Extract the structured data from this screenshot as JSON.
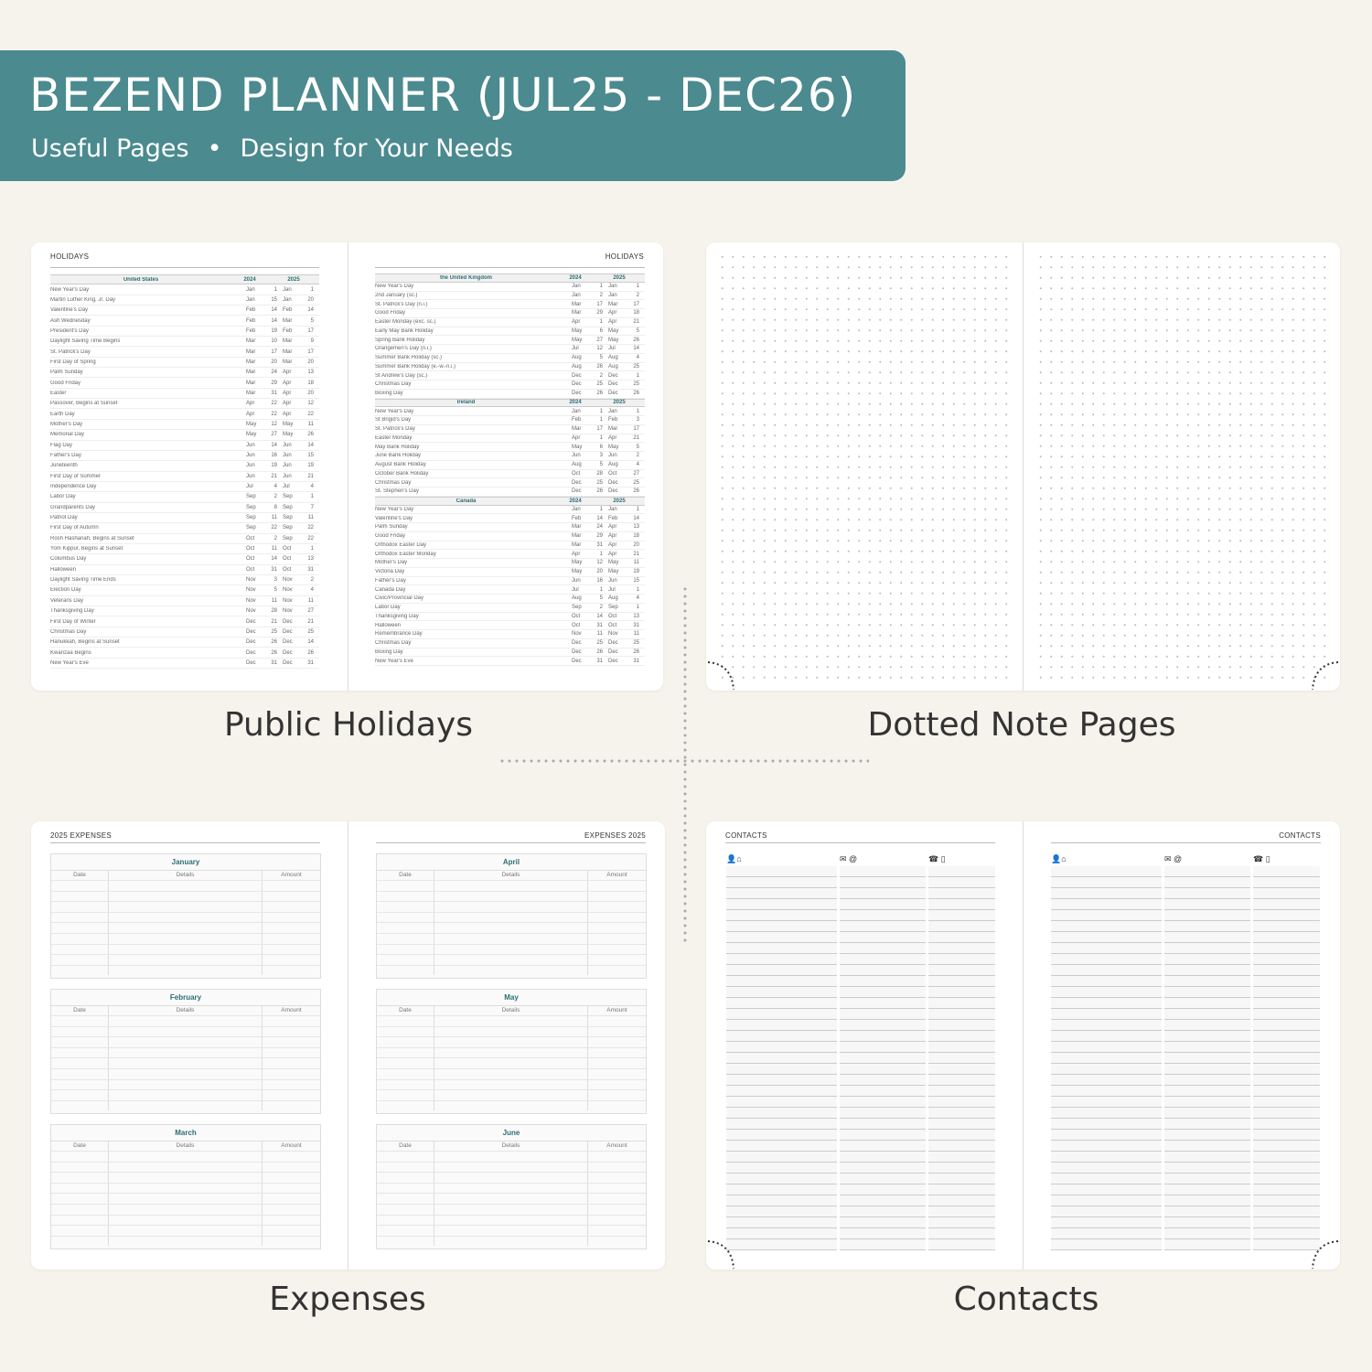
{
  "banner": {
    "title": "BEZEND PLANNER (JUL25 - DEC26)",
    "subtitle_left": "Useful Pages",
    "bullet": "•",
    "subtitle_right": "Design for Your Needs",
    "color": "#4b8a8f"
  },
  "captions": {
    "holidays": "Public Holidays",
    "dotted": "Dotted Note Pages",
    "expenses": "Expenses",
    "contacts": "Contacts"
  },
  "holidays": {
    "left_title": "HOLIDAYS",
    "right_title": "HOLIDAYS",
    "tables": [
      {
        "country": "United States",
        "years": [
          "2024",
          "2025"
        ],
        "rows": [
          [
            "New Year's Day",
            "Jan",
            "1",
            "Jan",
            "1"
          ],
          [
            "Martin Luther King, Jr. Day",
            "Jan",
            "15",
            "Jan",
            "20"
          ],
          [
            "Valentine's Day",
            "Feb",
            "14",
            "Feb",
            "14"
          ],
          [
            "Ash Wednesday",
            "Feb",
            "14",
            "Mar",
            "5"
          ],
          [
            "President's Day",
            "Feb",
            "19",
            "Feb",
            "17"
          ],
          [
            "Daylight Saving Time Begins",
            "Mar",
            "10",
            "Mar",
            "9"
          ],
          [
            "St. Patrick's Day",
            "Mar",
            "17",
            "Mar",
            "17"
          ],
          [
            "First Day of Spring",
            "Mar",
            "20",
            "Mar",
            "20"
          ],
          [
            "Palm Sunday",
            "Mar",
            "24",
            "Apr",
            "13"
          ],
          [
            "Good Friday",
            "Mar",
            "29",
            "Apr",
            "18"
          ],
          [
            "Easter",
            "Mar",
            "31",
            "Apr",
            "20"
          ],
          [
            "Passover, Begins at Sunset",
            "Apr",
            "22",
            "Apr",
            "12"
          ],
          [
            "Earth Day",
            "Apr",
            "22",
            "Apr",
            "22"
          ],
          [
            "Mother's Day",
            "May",
            "12",
            "May",
            "11"
          ],
          [
            "Memorial Day",
            "May",
            "27",
            "May",
            "26"
          ],
          [
            "Flag Day",
            "Jun",
            "14",
            "Jun",
            "14"
          ],
          [
            "Father's Day",
            "Jun",
            "16",
            "Jun",
            "15"
          ],
          [
            "Juneteenth",
            "Jun",
            "19",
            "Jun",
            "19"
          ],
          [
            "First Day of Summer",
            "Jun",
            "21",
            "Jun",
            "21"
          ],
          [
            "Independence Day",
            "Jul",
            "4",
            "Jul",
            "4"
          ],
          [
            "Labor Day",
            "Sep",
            "2",
            "Sep",
            "1"
          ],
          [
            "Grandparents Day",
            "Sep",
            "8",
            "Sep",
            "7"
          ],
          [
            "Patriot Day",
            "Sep",
            "11",
            "Sep",
            "11"
          ],
          [
            "First Day of Autumn",
            "Sep",
            "22",
            "Sep",
            "22"
          ],
          [
            "Rosh Hashanah, Begins at Sunset",
            "Oct",
            "2",
            "Sep",
            "22"
          ],
          [
            "Yom Kippur, Begins at Sunset",
            "Oct",
            "11",
            "Oct",
            "1"
          ],
          [
            "Columbus Day",
            "Oct",
            "14",
            "Oct",
            "13"
          ],
          [
            "Halloween",
            "Oct",
            "31",
            "Oct",
            "31"
          ],
          [
            "Daylight Saving Time Ends",
            "Nov",
            "3",
            "Nov",
            "2"
          ],
          [
            "Election Day",
            "Nov",
            "5",
            "Nov",
            "4"
          ],
          [
            "Veterans Day",
            "Nov",
            "11",
            "Nov",
            "11"
          ],
          [
            "Thanksgiving Day",
            "Nov",
            "28",
            "Nov",
            "27"
          ],
          [
            "First Day of Winter",
            "Dec",
            "21",
            "Dec",
            "21"
          ],
          [
            "Christmas Day",
            "Dec",
            "25",
            "Dec",
            "25"
          ],
          [
            "Hanukkah, Begins at Sunset",
            "Dec",
            "26",
            "Dec",
            "14"
          ],
          [
            "Kwanzaa Begins",
            "Dec",
            "26",
            "Dec",
            "26"
          ],
          [
            "New Year's Eve",
            "Dec",
            "31",
            "Dec",
            "31"
          ]
        ]
      },
      {
        "country": "the United Kingdom",
        "years": [
          "2024",
          "2025"
        ],
        "rows": [
          [
            "New Year's Day",
            "Jan",
            "1",
            "Jan",
            "1"
          ],
          [
            "2nd January (sc.)",
            "Jan",
            "2",
            "Jan",
            "2"
          ],
          [
            "St. Patrick's Day (n.i.)",
            "Mar",
            "17",
            "Mar",
            "17"
          ],
          [
            "Good Friday",
            "Mar",
            "29",
            "Apr",
            "18"
          ],
          [
            "Easter Monday (exc. sc.)",
            "Apr",
            "1",
            "Apr",
            "21"
          ],
          [
            "Early May Bank Holiday",
            "May",
            "6",
            "May",
            "5"
          ],
          [
            "Spring Bank Holiday",
            "May",
            "27",
            "May",
            "26"
          ],
          [
            "Orangemen's Day (n.i.)",
            "Jul",
            "12",
            "Jul",
            "14"
          ],
          [
            "Summer Bank Holiday (sc.)",
            "Aug",
            "5",
            "Aug",
            "4"
          ],
          [
            "Summer Bank Holiday (e.-w.-n.i.)",
            "Aug",
            "26",
            "Aug",
            "25"
          ],
          [
            "St Andrew's Day (sc.)",
            "Dec",
            "2",
            "Dec",
            "1"
          ],
          [
            "Christmas Day",
            "Dec",
            "25",
            "Dec",
            "25"
          ],
          [
            "Boxing Day",
            "Dec",
            "26",
            "Dec",
            "26"
          ]
        ]
      },
      {
        "country": "Ireland",
        "years": [
          "2024",
          "2025"
        ],
        "rows": [
          [
            "New Year's Day",
            "Jan",
            "1",
            "Jan",
            "1"
          ],
          [
            "St Brigid's Day",
            "Feb",
            "1",
            "Feb",
            "3"
          ],
          [
            "St. Patrick's Day",
            "Mar",
            "17",
            "Mar",
            "17"
          ],
          [
            "Easter Monday",
            "Apr",
            "1",
            "Apr",
            "21"
          ],
          [
            "May Bank Holiday",
            "May",
            "6",
            "May",
            "5"
          ],
          [
            "June Bank Holiday",
            "Jun",
            "3",
            "Jun",
            "2"
          ],
          [
            "August Bank Holiday",
            "Aug",
            "5",
            "Aug",
            "4"
          ],
          [
            "October Bank Holiday",
            "Oct",
            "28",
            "Oct",
            "27"
          ],
          [
            "Christmas Day",
            "Dec",
            "25",
            "Dec",
            "25"
          ],
          [
            "St. Stephen's Day",
            "Dec",
            "26",
            "Dec",
            "26"
          ]
        ]
      },
      {
        "country": "Canada",
        "years": [
          "2024",
          "2025"
        ],
        "rows": [
          [
            "New Year's Day",
            "Jan",
            "1",
            "Jan",
            "1"
          ],
          [
            "Valentine's Day",
            "Feb",
            "14",
            "Feb",
            "14"
          ],
          [
            "Palm Sunday",
            "Mar",
            "24",
            "Apr",
            "13"
          ],
          [
            "Good Friday",
            "Mar",
            "29",
            "Apr",
            "18"
          ],
          [
            "Orthodox Easter Day",
            "Mar",
            "31",
            "Apr",
            "20"
          ],
          [
            "Orthodox Easter Monday",
            "Apr",
            "1",
            "Apr",
            "21"
          ],
          [
            "Mother's Day",
            "May",
            "12",
            "May",
            "11"
          ],
          [
            "Victoria Day",
            "May",
            "20",
            "May",
            "19"
          ],
          [
            "Father's Day",
            "Jun",
            "16",
            "Jun",
            "15"
          ],
          [
            "Canada Day",
            "Jul",
            "1",
            "Jul",
            "1"
          ],
          [
            "Civic/Provincial Day",
            "Aug",
            "5",
            "Aug",
            "4"
          ],
          [
            "Labor Day",
            "Sep",
            "2",
            "Sep",
            "1"
          ],
          [
            "Thanksgiving Day",
            "Oct",
            "14",
            "Oct",
            "13"
          ],
          [
            "Halloween",
            "Oct",
            "31",
            "Oct",
            "31"
          ],
          [
            "Remembrance Day",
            "Nov",
            "11",
            "Nov",
            "11"
          ],
          [
            "Christmas Day",
            "Dec",
            "25",
            "Dec",
            "25"
          ],
          [
            "Boxing Day",
            "Dec",
            "26",
            "Dec",
            "26"
          ],
          [
            "New Year's Eve",
            "Dec",
            "31",
            "Dec",
            "31"
          ]
        ]
      }
    ]
  },
  "expenses": {
    "left_title": "2025 EXPENSES",
    "right_title": "EXPENSES 2025",
    "columns": [
      "Date",
      "Details",
      "Amount"
    ],
    "months_left": [
      "January",
      "February",
      "March"
    ],
    "months_right": [
      "April",
      "May",
      "June"
    ]
  },
  "contacts": {
    "left_title": "CONTACTS",
    "right_title": "CONTACTS",
    "col_icons": [
      "person-home-icon",
      "mail-at-icon",
      "phone-mobile-icon"
    ],
    "col_glyphs": [
      "👤⌂",
      "✉ @",
      "☎ ▯"
    ]
  }
}
